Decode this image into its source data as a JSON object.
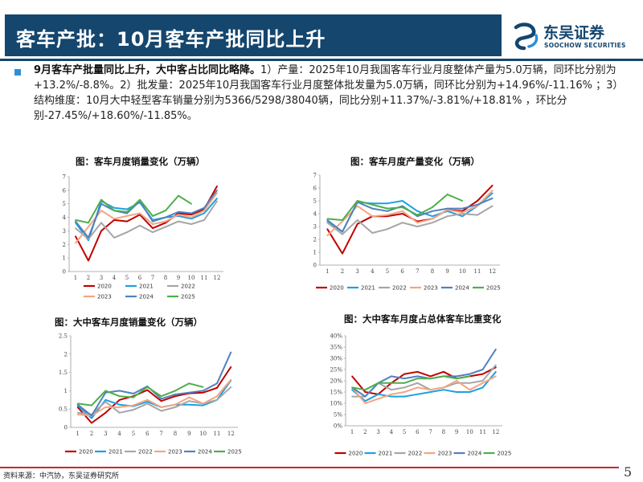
{
  "header": {
    "title": "客车产批：10月客车产批同比上升",
    "logo_cn": "东吴证券",
    "logo_en": "SOOCHOW SECURITIES",
    "brand_color": "#14466e"
  },
  "summary": {
    "lead": "9月客车产批量同比上升，大中客占比同比略降。",
    "body": "1）产量：2025年10月我国客车行业月度整体产量为5.0万辆，同环比分别为+13.2%/-8.8%。2）批发量：2025年10月我国客车行业月度整体批发量为5.0万辆，同环比分别为+14.96%/-11.16% ；3）结构维度：10月大中轻型客车销量分别为5366/5298/38040辆，同比分别+11.37%/-3.81%/+18.81% ，环比分别-27.45%/+18.60%/-11.85%。"
  },
  "footer": {
    "source": "资料来源：中汽协，东吴证券研究所",
    "page": "5"
  },
  "chart_data": [
    {
      "type": "line",
      "title": "图：客车月度销量变化（万辆）",
      "x": [
        "1",
        "2",
        "3",
        "4",
        "5",
        "6",
        "7",
        "8",
        "9",
        "10",
        "11",
        "12"
      ],
      "y_ticks": [
        "0",
        "1",
        "2",
        "3",
        "4",
        "5",
        "6",
        "7"
      ],
      "ylim": [
        0,
        7
      ],
      "legend_rows": [
        [
          "2020",
          "2021",
          "2022"
        ],
        [
          "2023",
          "2024",
          "2025"
        ]
      ],
      "series": [
        {
          "name": "2020",
          "color": "#c00000",
          "values": [
            2.6,
            0.8,
            3.0,
            3.8,
            3.7,
            4.2,
            3.2,
            3.6,
            4.3,
            4.2,
            4.6,
            6.3
          ]
        },
        {
          "name": "2021",
          "color": "#1ba1e2",
          "values": [
            3.6,
            2.3,
            5.2,
            4.7,
            4.6,
            5.1,
            3.8,
            4.0,
            4.1,
            3.9,
            4.3,
            5.4
          ]
        },
        {
          "name": "2022",
          "color": "#a6a6a6",
          "values": [
            3.2,
            2.4,
            3.6,
            2.5,
            2.9,
            3.4,
            2.9,
            3.3,
            3.7,
            3.5,
            3.8,
            5.2
          ]
        },
        {
          "name": "2023",
          "color": "#f4a582",
          "values": [
            2.1,
            3.3,
            4.5,
            3.9,
            4.1,
            4.3,
            3.5,
            3.7,
            4.2,
            4.0,
            4.5,
            5.8
          ]
        },
        {
          "name": "2024",
          "color": "#4f81bd",
          "values": [
            3.7,
            2.5,
            5.0,
            4.5,
            4.3,
            5.2,
            3.7,
            4.0,
            4.4,
            4.3,
            4.7,
            6.0
          ]
        },
        {
          "name": "2025",
          "color": "#4daf4a",
          "values": [
            3.8,
            3.6,
            5.3,
            4.5,
            4.4,
            5.3,
            4.1,
            4.5,
            5.6,
            5.0,
            null,
            null
          ]
        }
      ]
    },
    {
      "type": "line",
      "title": "图：客车月度产量变化（万辆）",
      "x": [
        "1",
        "2",
        "3",
        "4",
        "5",
        "6",
        "7",
        "8",
        "9",
        "10",
        "11",
        "12"
      ],
      "y_ticks": [
        "0",
        "1",
        "2",
        "3",
        "4",
        "5",
        "6",
        "7"
      ],
      "ylim": [
        0,
        7
      ],
      "legend_rows": [
        [
          "2020",
          "2021",
          "2022",
          "2023",
          "2024",
          "2025"
        ]
      ],
      "series": [
        {
          "name": "2020",
          "color": "#c00000",
          "values": [
            2.8,
            0.9,
            3.2,
            3.8,
            3.8,
            4.0,
            3.4,
            3.6,
            4.3,
            4.2,
            5.0,
            6.2
          ]
        },
        {
          "name": "2021",
          "color": "#1ba1e2",
          "values": [
            3.4,
            2.6,
            4.9,
            4.8,
            4.8,
            5.0,
            4.2,
            3.8,
            4.2,
            3.8,
            4.6,
            5.6
          ]
        },
        {
          "name": "2022",
          "color": "#a6a6a6",
          "values": [
            3.3,
            2.4,
            3.5,
            2.5,
            2.8,
            3.3,
            3.0,
            3.3,
            3.8,
            4.0,
            3.9,
            4.6
          ]
        },
        {
          "name": "2023",
          "color": "#f4a582",
          "values": [
            2.3,
            3.4,
            4.6,
            3.8,
            3.9,
            4.2,
            3.3,
            3.6,
            4.3,
            4.1,
            4.6,
            5.8
          ]
        },
        {
          "name": "2024",
          "color": "#4f81bd",
          "values": [
            3.5,
            2.6,
            4.9,
            4.4,
            4.2,
            4.6,
            3.8,
            4.2,
            4.4,
            4.4,
            4.7,
            5.2
          ]
        },
        {
          "name": "2025",
          "color": "#4daf4a",
          "values": [
            3.6,
            3.5,
            5.0,
            4.7,
            4.4,
            4.5,
            3.9,
            4.5,
            5.5,
            5.0,
            null,
            null
          ]
        }
      ]
    },
    {
      "type": "line",
      "title": "图：大中客车月度销量变化（万辆）",
      "x": [
        "1",
        "2",
        "3",
        "4",
        "5",
        "6",
        "7",
        "8",
        "9",
        "10",
        "11",
        "12"
      ],
      "y_ticks": [
        "0",
        "0.5",
        "1",
        "1.5",
        "2",
        "2.5"
      ],
      "ylim": [
        0,
        2.5
      ],
      "legend_rows": [
        [
          "2020",
          "2021",
          "2022",
          "2023",
          "2024",
          "2025"
        ]
      ],
      "series": [
        {
          "name": "2020",
          "color": "#c00000",
          "values": [
            0.55,
            0.12,
            0.4,
            0.75,
            0.85,
            1.02,
            0.72,
            0.85,
            0.93,
            0.95,
            1.08,
            1.65
          ]
        },
        {
          "name": "2021",
          "color": "#1ba1e2",
          "values": [
            0.6,
            0.25,
            0.75,
            0.62,
            0.58,
            0.7,
            0.55,
            0.62,
            0.62,
            0.6,
            0.75,
            1.28
          ]
        },
        {
          "name": "2022",
          "color": "#a6a6a6",
          "values": [
            0.4,
            0.35,
            0.7,
            0.4,
            0.48,
            0.65,
            0.45,
            0.55,
            0.72,
            0.65,
            0.75,
            1.1
          ]
        },
        {
          "name": "2023",
          "color": "#f4a582",
          "values": [
            0.35,
            0.32,
            0.55,
            0.55,
            0.6,
            0.75,
            0.55,
            0.62,
            0.82,
            0.65,
            0.85,
            1.3
          ]
        },
        {
          "name": "2024",
          "color": "#4f81bd",
          "values": [
            0.62,
            0.32,
            0.95,
            1.0,
            0.92,
            1.12,
            0.78,
            0.9,
            0.95,
            1.0,
            1.2,
            2.05
          ]
        },
        {
          "name": "2025",
          "color": "#4daf4a",
          "values": [
            0.65,
            0.6,
            1.0,
            0.85,
            0.82,
            1.1,
            0.85,
            1.0,
            1.2,
            1.1,
            null,
            null
          ]
        }
      ]
    },
    {
      "type": "line",
      "title": "图：大中客车月度占总体客车比重变化",
      "x": [
        "1",
        "2",
        "3",
        "4",
        "5",
        "6",
        "7",
        "8",
        "9",
        "10",
        "11",
        "12"
      ],
      "y_ticks": [
        "0%",
        "5%",
        "10%",
        "15%",
        "20%",
        "25%",
        "30%",
        "35%",
        "40%"
      ],
      "ylim": [
        0,
        40
      ],
      "legend_rows": [
        [
          "2020",
          "2021",
          "2022",
          "2023",
          "2024",
          "2025"
        ]
      ],
      "series": [
        {
          "name": "2020",
          "color": "#c00000",
          "values": [
            22,
            15,
            14,
            19,
            23,
            24,
            22,
            24,
            21,
            22,
            23,
            26
          ]
        },
        {
          "name": "2021",
          "color": "#1ba1e2",
          "values": [
            16,
            11,
            14,
            13,
            13,
            14,
            15,
            16,
            15,
            15,
            17,
            24
          ]
        },
        {
          "name": "2022",
          "color": "#a6a6a6",
          "values": [
            13,
            13,
            19,
            16,
            17,
            19,
            16,
            17,
            19,
            19,
            20,
            27
          ]
        },
        {
          "name": "2023",
          "color": "#f4a582",
          "values": [
            17,
            10,
            12,
            14,
            15,
            17,
            16,
            17,
            20,
            16,
            19,
            22
          ]
        },
        {
          "name": "2024",
          "color": "#4f81bd",
          "values": [
            17,
            13,
            19,
            22,
            21,
            22,
            21,
            22,
            22,
            23,
            25,
            34
          ]
        },
        {
          "name": "2025",
          "color": "#4daf4a",
          "values": [
            17,
            16,
            19,
            19,
            19,
            21,
            21,
            22,
            21,
            22,
            null,
            null
          ]
        }
      ]
    }
  ]
}
